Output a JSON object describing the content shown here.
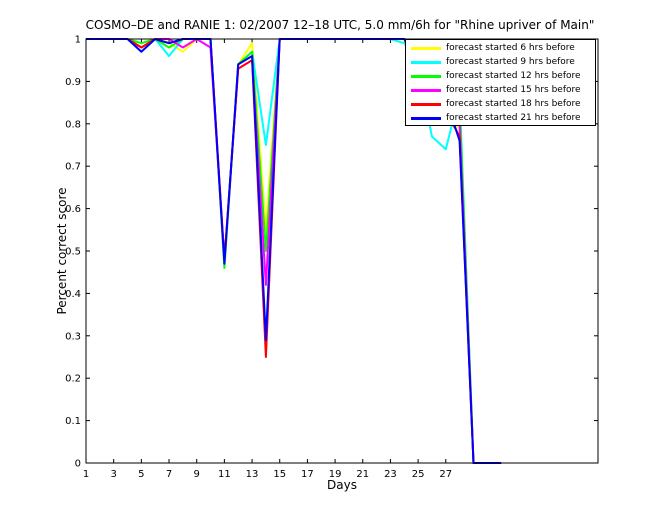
{
  "chart_data": {
    "type": "line",
    "title": "COSMO–DE and RANIE 1: 02/2007 12–18 UTC, 5.0 mm/6h for \"Rhine upriver of Main\"",
    "xlabel": "Days",
    "ylabel": "Percent correct score",
    "xlim": [
      1,
      38
    ],
    "ylim": [
      0,
      1
    ],
    "xticks": [
      1,
      3,
      5,
      7,
      9,
      11,
      13,
      15,
      17,
      19,
      21,
      23,
      25,
      27
    ],
    "yticks": [
      0,
      0.1,
      0.2,
      0.3,
      0.4,
      0.5,
      0.6,
      0.7,
      0.8,
      0.9,
      1
    ],
    "legend_position": "top-right",
    "series": [
      {
        "name": "forecast started 6 hrs before",
        "color": "#ffff00",
        "x": [
          1,
          2,
          3,
          4,
          5,
          6,
          7,
          8,
          9,
          10,
          11,
          12,
          13,
          14,
          15,
          16,
          17,
          18,
          19,
          20,
          21,
          22,
          23,
          24,
          25,
          26,
          27,
          28,
          29,
          30,
          31
        ],
        "y": [
          1,
          1,
          1,
          1,
          0.98,
          1,
          0.99,
          0.97,
          1,
          1,
          0.47,
          0.94,
          0.99,
          0.55,
          1,
          1,
          1,
          1,
          1,
          1,
          1,
          1,
          1,
          0.99,
          0.95,
          0.8,
          0.82,
          0.79,
          0,
          0,
          0
        ]
      },
      {
        "name": "forecast started 9 hrs before",
        "color": "#00ffff",
        "x": [
          1,
          2,
          3,
          4,
          5,
          6,
          7,
          8,
          9,
          10,
          11,
          12,
          13,
          14,
          15,
          16,
          17,
          18,
          19,
          20,
          21,
          22,
          23,
          24,
          25,
          26,
          27,
          28,
          29,
          30,
          31
        ],
        "y": [
          1,
          1,
          1,
          1,
          0.97,
          1,
          0.96,
          1,
          1,
          1,
          0.47,
          0.94,
          0.97,
          0.75,
          1,
          1,
          1,
          1,
          1,
          1,
          1,
          1,
          1,
          0.99,
          0.94,
          0.77,
          0.74,
          0.87,
          0,
          0,
          0
        ]
      },
      {
        "name": "forecast started 12 hrs before",
        "color": "#00ff00",
        "x": [
          1,
          2,
          3,
          4,
          5,
          6,
          7,
          8,
          9,
          10,
          11,
          12,
          13,
          14,
          15,
          16,
          17,
          18,
          19,
          20,
          21,
          22,
          23,
          24,
          25,
          26,
          27,
          28,
          29,
          30,
          31
        ],
        "y": [
          1,
          1,
          1,
          1,
          0.99,
          1,
          0.98,
          1,
          1,
          1,
          0.46,
          0.94,
          0.97,
          0.5,
          1,
          1,
          1,
          1,
          1,
          1,
          1,
          1,
          1,
          1,
          0.97,
          0.8,
          0.88,
          0.85,
          0,
          0,
          0
        ]
      },
      {
        "name": "forecast started 15 hrs before",
        "color": "#ff00ff",
        "x": [
          1,
          2,
          3,
          4,
          5,
          6,
          7,
          8,
          9,
          10,
          11,
          12,
          13,
          14,
          15,
          16,
          17,
          18,
          19,
          20,
          21,
          22,
          23,
          24,
          25,
          26,
          27,
          28,
          29,
          30,
          31
        ],
        "y": [
          1,
          1,
          1,
          1,
          0.98,
          1,
          1,
          0.98,
          1,
          0.98,
          0.48,
          0.93,
          0.95,
          0.42,
          1,
          1,
          1,
          1,
          1,
          1,
          1,
          1,
          1,
          1,
          0.94,
          0.85,
          0.87,
          0.8,
          0,
          0,
          0
        ]
      },
      {
        "name": "forecast started 18 hrs before",
        "color": "#ff0000",
        "x": [
          1,
          2,
          3,
          4,
          5,
          6,
          7,
          8,
          9,
          10,
          11,
          12,
          13,
          14,
          15,
          16,
          17,
          18,
          19,
          20,
          21,
          22,
          23,
          24,
          25,
          26,
          27,
          28,
          29,
          30,
          31
        ],
        "y": [
          1,
          1,
          1,
          1,
          0.98,
          1,
          0.99,
          1,
          1,
          1,
          0.48,
          0.93,
          0.95,
          0.25,
          1,
          1,
          1,
          1,
          1,
          1,
          1,
          1,
          1,
          1,
          0.92,
          0.81,
          0.83,
          0.77,
          0,
          0,
          0
        ]
      },
      {
        "name": "forecast started 21 hrs before",
        "color": "#0000ff",
        "x": [
          1,
          2,
          3,
          4,
          5,
          6,
          7,
          8,
          9,
          10,
          11,
          12,
          13,
          14,
          15,
          16,
          17,
          18,
          19,
          20,
          21,
          22,
          23,
          24,
          25,
          26,
          27,
          28,
          29,
          30,
          31
        ],
        "y": [
          1,
          1,
          1,
          1,
          0.97,
          1,
          0.99,
          1,
          1,
          1,
          0.47,
          0.94,
          0.96,
          0.29,
          1,
          1,
          1,
          1,
          1,
          1,
          1,
          1,
          1,
          1,
          0.94,
          0.82,
          0.86,
          0.76,
          0,
          0,
          0
        ]
      }
    ]
  }
}
